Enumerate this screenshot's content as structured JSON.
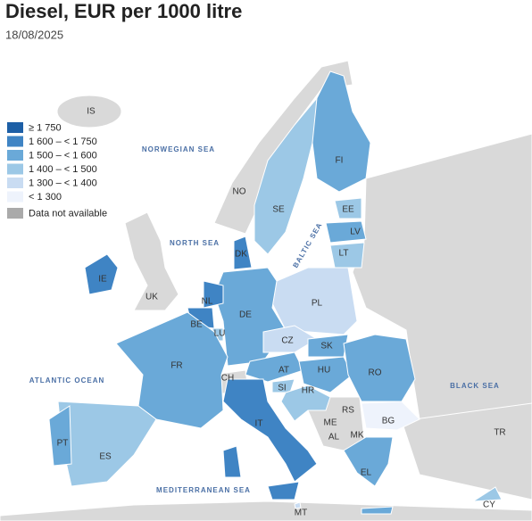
{
  "title": "Diesel, EUR per 1000 litre",
  "date": "18/08/2025",
  "legend": [
    {
      "label": "≥ 1 750",
      "color": "#1d5fa6"
    },
    {
      "label": "1 600 – < 1 750",
      "color": "#3f84c4"
    },
    {
      "label": "1 500 – < 1 600",
      "color": "#6aa9d8"
    },
    {
      "label": "1 400 – < 1 500",
      "color": "#9cc8e6"
    },
    {
      "label": "1 300 – < 1 400",
      "color": "#c9dcf2"
    },
    {
      "label": "< 1 300",
      "color": "#eef3fc"
    },
    {
      "label": "Data not available",
      "color": "#aaaaaa"
    }
  ],
  "countries": [
    {
      "code": "IE",
      "color": "#3f84c4"
    },
    {
      "code": "SE",
      "color": "#9cc8e6"
    },
    {
      "code": "FI",
      "color": "#6aa9d8"
    },
    {
      "code": "EE",
      "color": "#9cc8e6"
    },
    {
      "code": "LV",
      "color": "#6aa9d8"
    },
    {
      "code": "LT",
      "color": "#9cc8e6"
    },
    {
      "code": "DK",
      "color": "#3f84c4"
    },
    {
      "code": "PL",
      "color": "#c9dcf2"
    },
    {
      "code": "DE",
      "color": "#6aa9d8"
    },
    {
      "code": "NL",
      "color": "#3f84c4"
    },
    {
      "code": "BE",
      "color": "#3f84c4"
    },
    {
      "code": "LU",
      "color": "#9cc8e6"
    },
    {
      "code": "FR",
      "color": "#6aa9d8"
    },
    {
      "code": "AT",
      "color": "#6aa9d8"
    },
    {
      "code": "CZ",
      "color": "#c9dcf2"
    },
    {
      "code": "SK",
      "color": "#6aa9d8"
    },
    {
      "code": "HU",
      "color": "#6aa9d8"
    },
    {
      "code": "SI",
      "color": "#9cc8e6"
    },
    {
      "code": "HR",
      "color": "#9cc8e6"
    },
    {
      "code": "RO",
      "color": "#6aa9d8"
    },
    {
      "code": "BG",
      "color": "#eef3fc"
    },
    {
      "code": "IT",
      "color": "#3f84c4"
    },
    {
      "code": "EL",
      "color": "#6aa9d8"
    },
    {
      "code": "CY",
      "color": "#9cc8e6"
    },
    {
      "code": "ES",
      "color": "#9cc8e6"
    },
    {
      "code": "PT",
      "color": "#6aa9d8"
    },
    {
      "code": "MT",
      "color": "#c9dcf2"
    }
  ],
  "other_labels": [
    "IS",
    "NO",
    "UK",
    "CH",
    "RS",
    "ME",
    "AL",
    "MK",
    "TR"
  ],
  "seas": [
    "NORWEGIAN SEA",
    "NORTH SEA",
    "BALTIC SEA",
    "ATLANTIC OCEAN",
    "BLACK SEA",
    "MEDITERRANEAN SEA"
  ]
}
